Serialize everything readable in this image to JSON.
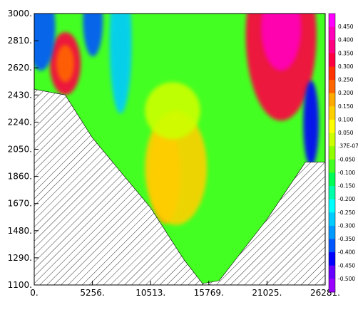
{
  "chart_data": {
    "type": "heatmap",
    "title": "",
    "xlabel": "",
    "ylabel": "",
    "xlim": [
      0,
      26281
    ],
    "ylim": [
      1100,
      3000
    ],
    "x_ticks": [
      "0.",
      "5256.",
      "10513.",
      "15769.",
      "21025.",
      "26281."
    ],
    "y_ticks": [
      "1100.",
      "1290.",
      "1480.",
      "1670.",
      "1860.",
      "2050.",
      "2240.",
      "2430.",
      "2620.",
      "2810.",
      "3000."
    ],
    "colorbar": {
      "position": "right",
      "levels": [
        {
          "label": "0.450",
          "color": "#ff00ff"
        },
        {
          "label": "0.400",
          "color": "#ff00bb"
        },
        {
          "label": "0.350",
          "color": "#ff0080"
        },
        {
          "label": "0.300",
          "color": "#ff0040"
        },
        {
          "label": "0.250",
          "color": "#ff3300"
        },
        {
          "label": "0.200",
          "color": "#ff6600"
        },
        {
          "label": "0.150",
          "color": "#ffaa00"
        },
        {
          "label": "0.100",
          "color": "#ffd000"
        },
        {
          "label": "0.050",
          "color": "#ffff00"
        },
        {
          "label": ".37E-07",
          "color": "#ccff00"
        },
        {
          "label": "-0.050",
          "color": "#90ff00"
        },
        {
          "label": "-0.100",
          "color": "#44ff22"
        },
        {
          "label": "-0.150",
          "color": "#00ff55"
        },
        {
          "label": "-0.200",
          "color": "#00ffaa"
        },
        {
          "label": "-0.250",
          "color": "#00ffff"
        },
        {
          "label": "-0.300",
          "color": "#00ccff"
        },
        {
          "label": "-0.350",
          "color": "#0099ff"
        },
        {
          "label": "-0.400",
          "color": "#0055ff"
        },
        {
          "label": "-0.450",
          "color": "#0000ff"
        },
        {
          "label": "-0.500",
          "color": "#6600ff"
        },
        {
          "label": "",
          "color": "#9900ff"
        }
      ]
    },
    "terrain": {
      "left": [
        [
          0,
          2470
        ],
        [
          2800,
          2430
        ],
        [
          5256,
          2130
        ],
        [
          10513,
          1640
        ],
        [
          13500,
          1280
        ],
        [
          15200,
          1110
        ]
      ],
      "right": [
        [
          15200,
          1110
        ],
        [
          16700,
          1130
        ],
        [
          21025,
          1560
        ],
        [
          24500,
          1960
        ],
        [
          26281,
          1960
        ]
      ]
    },
    "field_blobs": [
      {
        "x": 2800,
        "y": 2650,
        "rx": 1400,
        "ry": 220,
        "value": 0.3
      },
      {
        "x": 2800,
        "y": 2650,
        "rx": 800,
        "ry": 130,
        "value": 0.22
      },
      {
        "x": 22300,
        "y": 2850,
        "rx": 3200,
        "ry": 600,
        "value": 0.3
      },
      {
        "x": 22300,
        "y": 2900,
        "rx": 1800,
        "ry": 300,
        "value": 0.42
      },
      {
        "x": 11800,
        "y": 1880,
        "rx": 1400,
        "ry": 350,
        "value": 0.16
      },
      {
        "x": 12800,
        "y": 1920,
        "rx": 2800,
        "ry": 400,
        "value": 0.08
      },
      {
        "x": 12500,
        "y": 2320,
        "rx": 2500,
        "ry": 200,
        "value": 0.02
      },
      {
        "x": 7800,
        "y": 2800,
        "rx": 1000,
        "ry": 500,
        "value": -0.28
      },
      {
        "x": 25000,
        "y": 2230,
        "rx": 700,
        "ry": 300,
        "value": -0.45
      },
      {
        "x": 600,
        "y": 2900,
        "rx": 1300,
        "ry": 300,
        "value": -0.4
      },
      {
        "x": 5300,
        "y": 2950,
        "rx": 900,
        "ry": 250,
        "value": -0.38
      }
    ]
  }
}
